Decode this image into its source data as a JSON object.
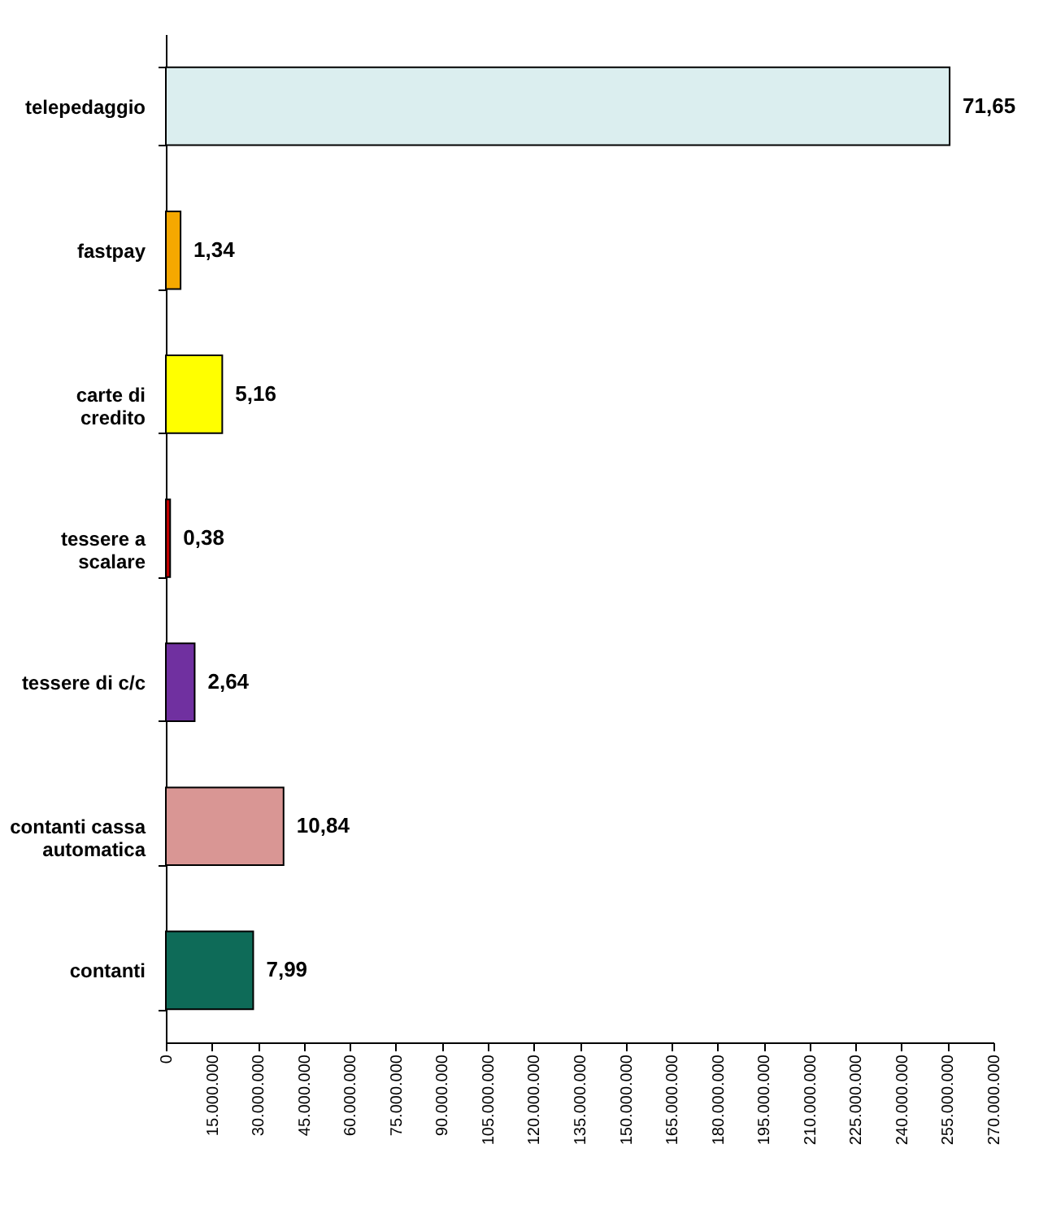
{
  "chart_data": {
    "type": "bar",
    "orientation": "horizontal",
    "categories": [
      "telepedaggio",
      "fastpay",
      "carte di credito",
      "tessere a scalare",
      "tessere di c/c",
      "contanti cassa automatica",
      "contanti"
    ],
    "values": [
      255700000,
      4800000,
      18400000,
      1400000,
      9400000,
      38400000,
      28500000
    ],
    "colors": [
      "#dbeeef",
      "#f5a800",
      "#ffff00",
      "#c00000",
      "#7030a0",
      "#d99694",
      "#0e6b58"
    ],
    "annotations": [
      {
        "text": "71,65",
        "x": 255700000,
        "y": "telepedaggio"
      },
      {
        "text": "1,34",
        "x": 4800000,
        "y": "fastpay"
      },
      {
        "text": "5,16",
        "x": 18400000,
        "y": "carte di credito"
      },
      {
        "text": "0,38",
        "x": 1400000,
        "y": "tessere a scalare"
      },
      {
        "text": "2,64",
        "x": 9400000,
        "y": "tessere di c/c"
      },
      {
        "text": "10,84",
        "x": 38400000,
        "y": "contanti cassa automatica"
      },
      {
        "text": "7,99",
        "x": 28500000,
        "y": "contanti"
      }
    ],
    "xlim": [
      0,
      270000000
    ],
    "xticks": [
      0,
      {
        "value": 15000000,
        "label": "15.000.000"
      },
      {
        "value": 30000000,
        "label": "30.000.000"
      },
      {
        "value": 45000000,
        "label": "45.000.000"
      },
      {
        "value": 60000000,
        "label": "60.000.000"
      },
      {
        "value": 75000000,
        "label": "75.000.000"
      },
      {
        "value": 90000000,
        "label": "90.000.000"
      },
      {
        "value": 105000000,
        "label": "105.000.000"
      },
      {
        "value": 120000000,
        "label": "120.000.000"
      },
      {
        "value": 135000000,
        "label": "135.000.000"
      },
      {
        "value": 150000000,
        "label": "150.000.000"
      },
      {
        "value": 165000000,
        "label": "165.000.000"
      },
      {
        "value": 180000000,
        "label": "180.000.000"
      },
      {
        "value": 195000000,
        "label": "195.000.000"
      },
      {
        "value": 210000000,
        "label": "210.000.000"
      },
      {
        "value": 225000000,
        "label": "225.000.000"
      },
      {
        "value": 240000000,
        "label": "240.000.000"
      },
      {
        "value": 255000000,
        "label": "255.000.000"
      },
      {
        "value": 270000000,
        "label": "270.000.000"
      }
    ],
    "grid": false
  }
}
